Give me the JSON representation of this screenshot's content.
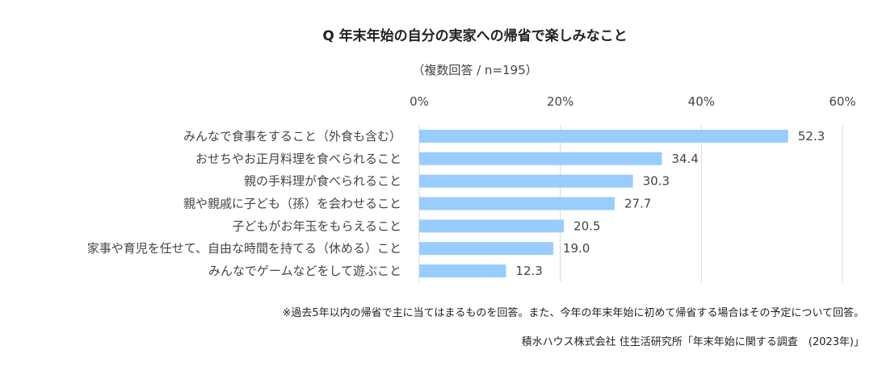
{
  "chart_data": {
    "type": "bar",
    "orientation": "horizontal",
    "title": "Q 年末年始の自分の実家への帰省で楽しみなこと",
    "subtitle": "（複数回答 / n=195）",
    "categories": [
      "みんなで食事をすること（外食も含む）",
      "おせちやお正月料理を食べられること",
      "親の手料理が食べられること",
      "親や親戚に子ども（孫）を会わせること",
      "子どもがお年玉をもらえること",
      "家事や育児を任せて、自由な時間を持てる（休める）こと",
      "みんなでゲームなどをして遊ぶこと"
    ],
    "values": [
      52.3,
      34.4,
      30.3,
      27.7,
      20.5,
      19.0,
      12.3
    ],
    "value_labels": [
      "52.3",
      "34.4",
      "30.3",
      "27.7",
      "20.5",
      "19.0",
      "12.3"
    ],
    "xlim": [
      0,
      60
    ],
    "x_ticks": [
      0,
      20,
      40,
      60
    ],
    "x_tick_labels": [
      "0%",
      "20%",
      "40%",
      "60%"
    ],
    "grid": true,
    "bar_color": "#99CCFF",
    "note": "※過去5年以内の帰省で主に当てはまるものを回答。また、今年の年末年始に初めて帰省する場合はその予定について回答。",
    "source": "積水ハウス株式会社 住生活研究所「年末年始に関する調査　(2023年)」"
  }
}
